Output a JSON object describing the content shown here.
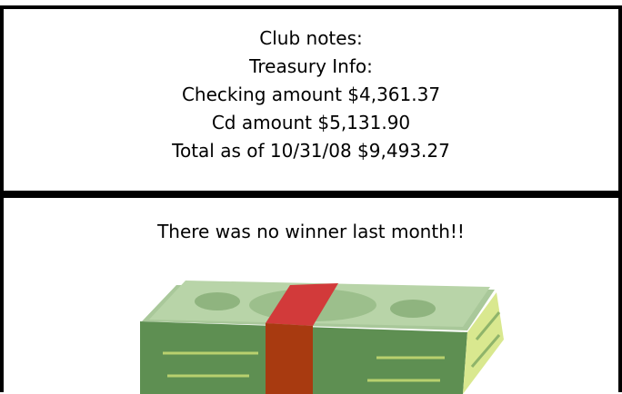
{
  "notes": {
    "lines": [
      "Club notes:",
      "Treasury Info:",
      "Checking amount $4,361.37",
      "Cd amount $5,131.90",
      "Total as of 10/31/08 $9,493.27"
    ]
  },
  "announcement": "There was no winner last month!!"
}
